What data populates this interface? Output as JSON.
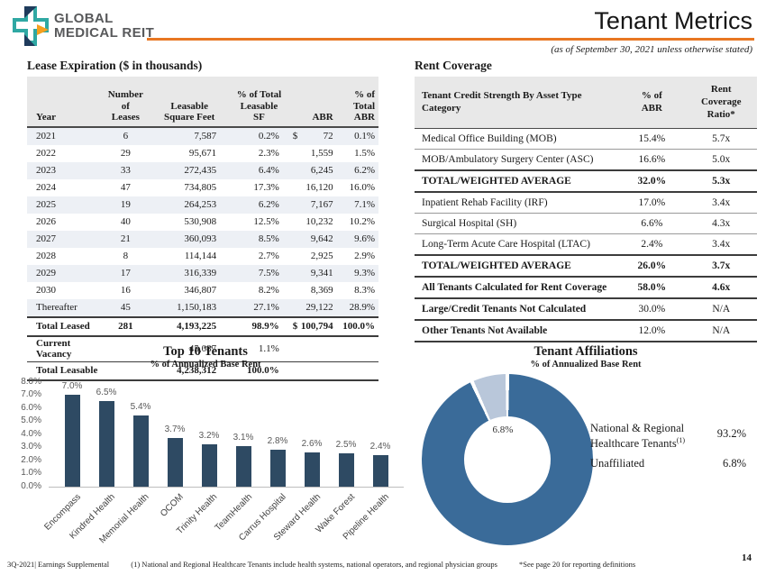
{
  "header": {
    "brand_line1": "GLOBAL",
    "brand_line2": "MEDICAL REIT",
    "title": "Tenant Metrics",
    "subtitle": "(as of September 30, 2021 unless otherwise stated)"
  },
  "colors": {
    "accent_orange": "#e87722",
    "logo_teal": "#2fa8a3",
    "logo_navy": "#1f3b5c",
    "bar_navy": "#2e4a63",
    "donut_blue": "#3a6b99",
    "donut_light": "#b9c7da",
    "table_header_gray": "#e8e8e8",
    "row_stripe": "#edf0f5"
  },
  "lease": {
    "title": "Lease Expiration  ($ in thousands)",
    "columns": {
      "year": "Year",
      "leases": [
        "Number of",
        "Leases"
      ],
      "sf": [
        "Leasable",
        "Square Feet"
      ],
      "pct_sf": [
        "% of Total",
        "Leasable",
        "SF"
      ],
      "abr": "ABR",
      "pct_abr": [
        "% of",
        "Total",
        "ABR"
      ]
    },
    "rows": [
      [
        "2021",
        "6",
        "7,587",
        "0.2%",
        "$",
        "72",
        "0.1%"
      ],
      [
        "2022",
        "29",
        "95,671",
        "2.3%",
        "",
        "1,559",
        "1.5%"
      ],
      [
        "2023",
        "33",
        "272,435",
        "6.4%",
        "",
        "6,245",
        "6.2%"
      ],
      [
        "2024",
        "47",
        "734,805",
        "17.3%",
        "",
        "16,120",
        "16.0%"
      ],
      [
        "2025",
        "19",
        "264,253",
        "6.2%",
        "",
        "7,167",
        "7.1%"
      ],
      [
        "2026",
        "40",
        "530,908",
        "12.5%",
        "",
        "10,232",
        "10.2%"
      ],
      [
        "2027",
        "21",
        "360,093",
        "8.5%",
        "",
        "9,642",
        "9.6%"
      ],
      [
        "2028",
        "8",
        "114,144",
        "2.7%",
        "",
        "2,925",
        "2.9%"
      ],
      [
        "2029",
        "17",
        "316,339",
        "7.5%",
        "",
        "9,341",
        "9.3%"
      ],
      [
        "2030",
        "16",
        "346,807",
        "8.2%",
        "",
        "8,369",
        "8.3%"
      ],
      [
        "Thereafter",
        "45",
        "1,150,183",
        "27.1%",
        "",
        "29,122",
        "28.9%"
      ],
      [
        "Total Leased",
        "281",
        "4,193,225",
        "98.9%",
        "$",
        "100,794",
        "100.0%"
      ],
      [
        "Current Vacancy",
        "",
        "45,087",
        "1.1%",
        "",
        "",
        ""
      ],
      [
        "Total Leasable",
        "",
        "4,238,312",
        "100.0%",
        "",
        "",
        ""
      ]
    ]
  },
  "rent_coverage": {
    "title": "Rent Coverage",
    "columns": {
      "category": [
        "Tenant Credit Strength By Asset Type",
        "Category"
      ],
      "pct_abr": [
        "% of",
        "ABR"
      ],
      "ratio": [
        "Rent",
        "Coverage",
        "Ratio*"
      ]
    },
    "rows": [
      [
        "Medical Office Building  (MOB)",
        "15.4%",
        "5.7x"
      ],
      [
        "MOB/Ambulatory  Surgery Center (ASC)",
        "16.6%",
        "5.0x"
      ],
      [
        "TOTAL/WEIGHTED AVERAGE",
        "32.0%",
        "5.3x"
      ],
      [
        "Inpatient  Rehab Facility  (IRF)",
        "17.0%",
        "3.4x"
      ],
      [
        "Surgical Hospital  (SH)",
        "6.6%",
        "4.3x"
      ],
      [
        "Long-Term Acute Care Hospital  (LTAC)",
        "2.4%",
        "3.4x"
      ],
      [
        "TOTAL/WEIGHTED AVERAGE",
        "26.0%",
        "3.7x"
      ],
      [
        "All Tenants Calculated for Rent Coverage",
        "58.0%",
        "4.6x"
      ],
      [
        "Large/Credit Tenants Not Calculated",
        "30.0%",
        "N/A"
      ],
      [
        "Other Tenants Not Available",
        "12.0%",
        "N/A"
      ]
    ]
  },
  "chart_data": [
    {
      "type": "bar",
      "title": "Top 10 Tenants",
      "subtitle": "% of Annualized  Base Rent",
      "categories": [
        "Encompass",
        "Kindred Health",
        "Memorial Health",
        "OCOM",
        "Trinity Health",
        "TeamHealth",
        "Carrus Hospital",
        "Steward Health",
        "Wake Forest",
        "Pipeline Health"
      ],
      "values": [
        7.0,
        6.5,
        5.4,
        3.7,
        3.2,
        3.1,
        2.8,
        2.6,
        2.5,
        2.4
      ],
      "labels": [
        "7.0%",
        "6.5%",
        "5.4%",
        "3.7%",
        "3.2%",
        "3.1%",
        "2.8%",
        "2.6%",
        "2.5%",
        "2.4%"
      ],
      "ylim": [
        0,
        8
      ],
      "yticks": [
        "8.0%",
        "7.0%",
        "6.0%",
        "5.0%",
        "4.0%",
        "3.0%",
        "2.0%",
        "1.0%",
        "0.0%"
      ],
      "ylabel": "",
      "xlabel": "",
      "grid": false,
      "bar_color": "#2e4a63"
    },
    {
      "type": "pie",
      "donut": true,
      "title": "Tenant Affiliations",
      "subtitle": "% of Annualized  Base Rent",
      "slices": [
        {
          "label_line1": "National  & Regional",
          "label_line2": "Healthcare  Tenants",
          "sup": "(1)",
          "value": 93.2,
          "display": "93.2%",
          "color": "#3a6b99"
        },
        {
          "label_line1": "Unaffiliated",
          "label_line2": "",
          "sup": "",
          "value": 6.8,
          "display": "6.8%",
          "color": "#b9c7da"
        }
      ],
      "legend_position": "right"
    }
  ],
  "footer": {
    "left": "3Q-2021|  Earnings Supplemental",
    "note1": "(1)   National and Regional Healthcare  Tenants include health systems, national operators, and regional physician groups",
    "note2": "*See page 20 for reporting definitions",
    "page_number": "14"
  }
}
